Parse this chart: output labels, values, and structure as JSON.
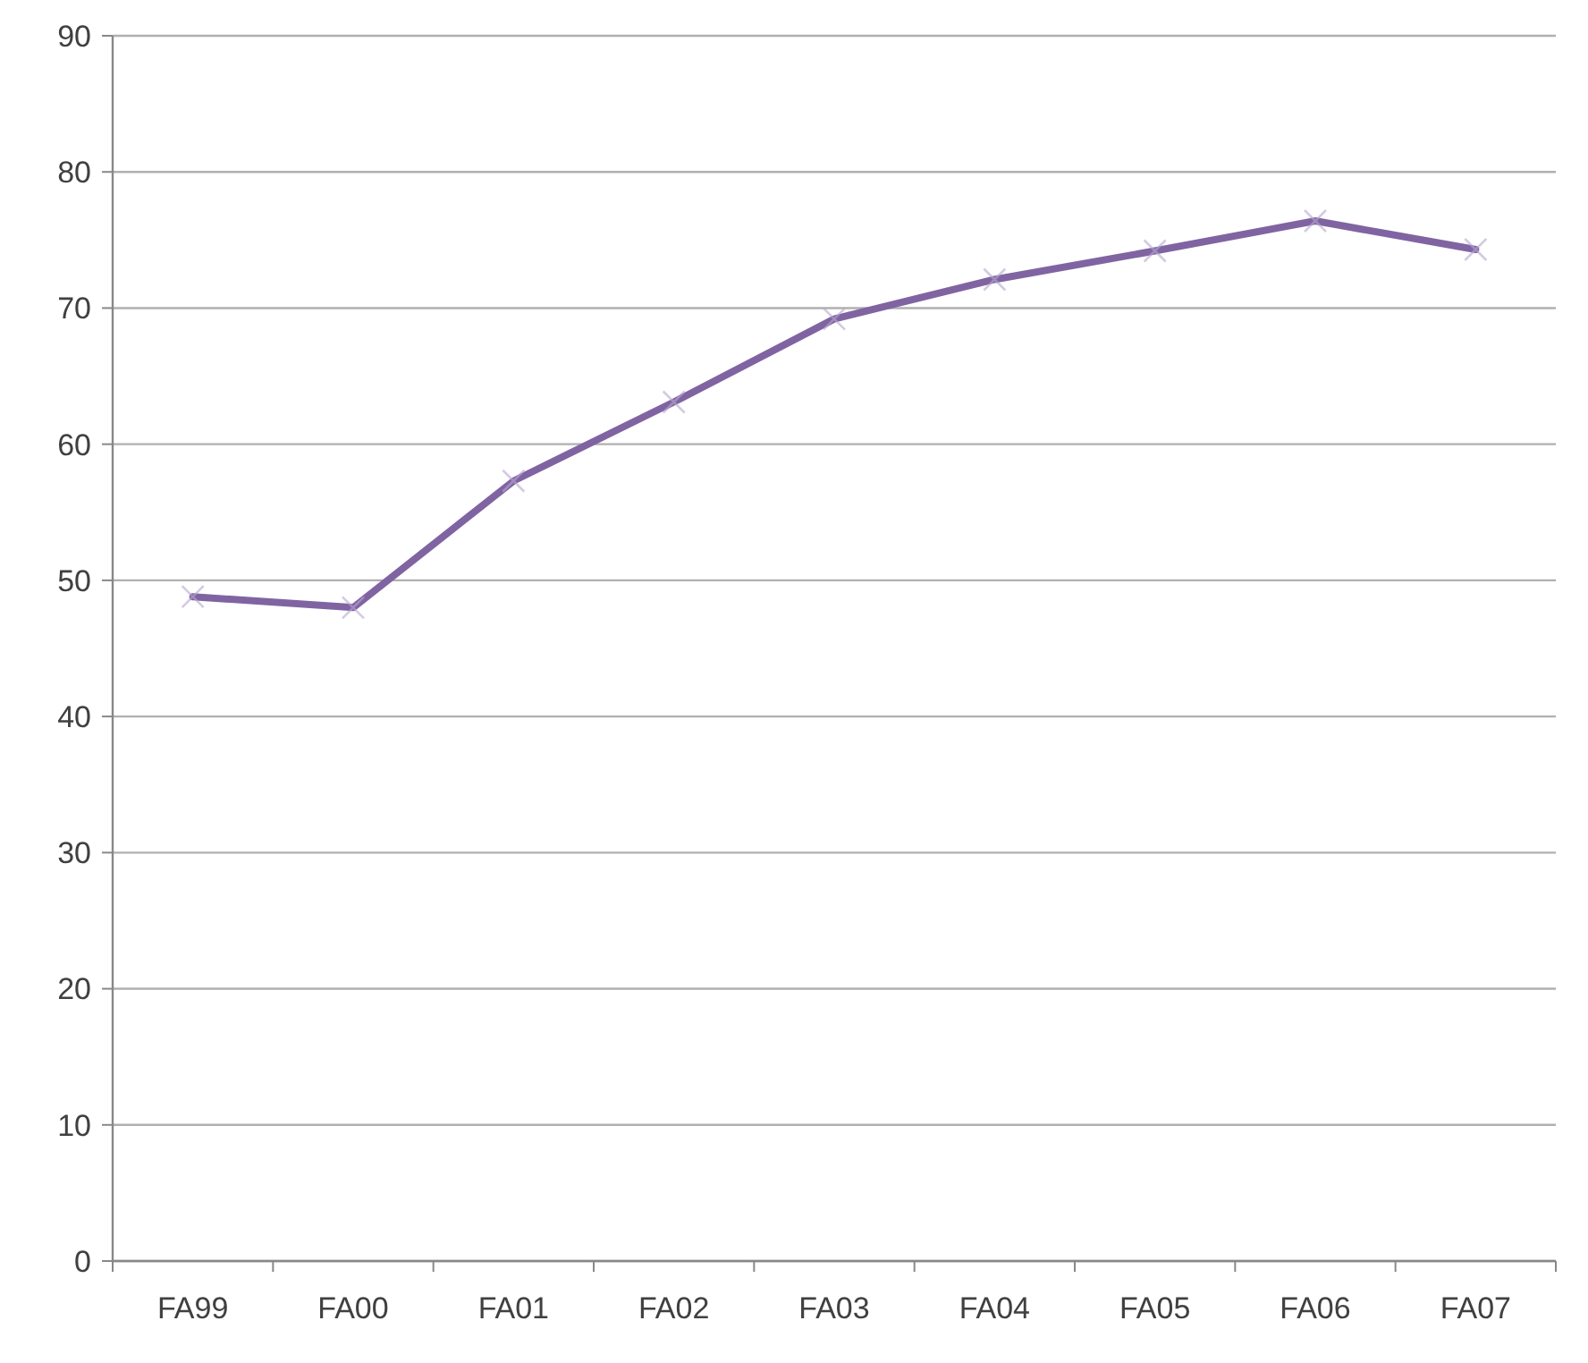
{
  "chart_data": {
    "type": "line",
    "categories": [
      "FA99",
      "FA00",
      "FA01",
      "FA02",
      "FA03",
      "FA04",
      "FA05",
      "FA06",
      "FA07"
    ],
    "series": [
      {
        "color": "#8064a2",
        "values": [
          48.8,
          48.0,
          57.3,
          63.1,
          69.2,
          72.1,
          74.2,
          76.4,
          74.3
        ]
      }
    ],
    "ylim": [
      0,
      90
    ],
    "yticks": [
      0,
      10,
      20,
      30,
      40,
      50,
      60,
      70,
      80,
      90
    ],
    "grid": "y",
    "marker": "cross",
    "line_style": "solid"
  }
}
